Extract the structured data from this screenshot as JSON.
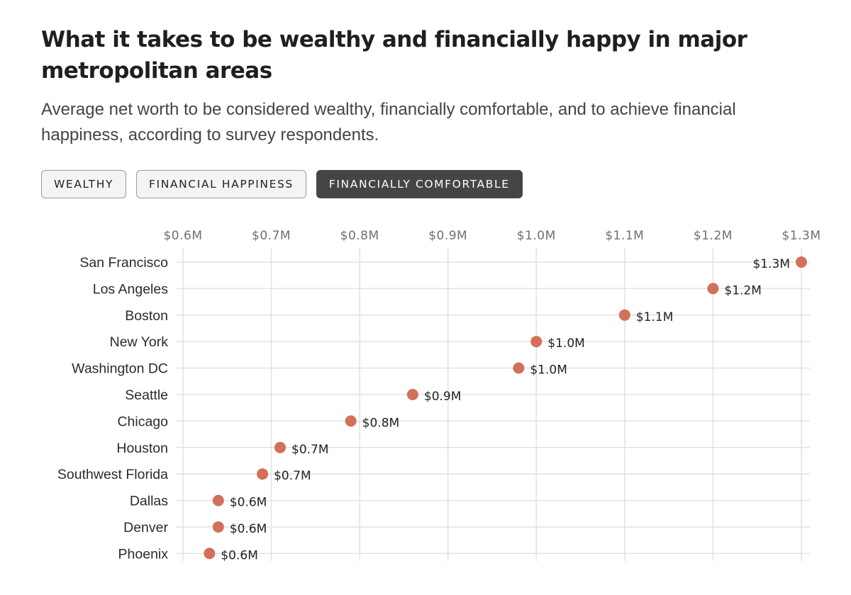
{
  "header": {
    "title": "What it takes to be wealthy and financially happy in major metropolitan areas",
    "subtitle": "Average net worth to be considered wealthy, financially comfortable, and to achieve financial happiness, according to survey respondents."
  },
  "toggles": {
    "wealthy": "WEALTHY",
    "financial_happiness": "FINANCIAL HAPPINESS",
    "financially_comfortable": "FINANCIALLY COMFORTABLE",
    "active": "financially_comfortable"
  },
  "colors": {
    "dot": "#d2705a",
    "grid": "#e2e2e2",
    "active_toggle": "#454545"
  },
  "chart_data": {
    "type": "scatter",
    "title": "",
    "xlabel": "",
    "ylabel": "",
    "xlim": [
      0.6,
      1.3
    ],
    "ticks": [
      0.6,
      0.7,
      0.8,
      0.9,
      1.0,
      1.1,
      1.2,
      1.3
    ],
    "tick_labels": [
      "$0.6M",
      "$0.7M",
      "$0.8M",
      "$0.9M",
      "$1.0M",
      "$1.1M",
      "$1.2M",
      "$1.3M"
    ],
    "categories": [
      "San Francisco",
      "Los Angeles",
      "Boston",
      "New York",
      "Washington DC",
      "Seattle",
      "Chicago",
      "Houston",
      "Southwest Florida",
      "Dallas",
      "Denver",
      "Phoenix"
    ],
    "values": [
      1.3,
      1.2,
      1.1,
      1.0,
      0.98,
      0.86,
      0.79,
      0.71,
      0.69,
      0.64,
      0.64,
      0.63
    ],
    "value_labels": [
      "$1.3M",
      "$1.2M",
      "$1.1M",
      "$1.0M",
      "$1.0M",
      "$0.9M",
      "$0.8M",
      "$0.7M",
      "$0.7M",
      "$0.6M",
      "$0.6M",
      "$0.6M"
    ],
    "series": [
      {
        "name": "Financially comfortable",
        "values": [
          1.3,
          1.2,
          1.1,
          1.0,
          0.98,
          0.86,
          0.79,
          0.71,
          0.69,
          0.64,
          0.64,
          0.63
        ]
      }
    ],
    "grid": true
  }
}
